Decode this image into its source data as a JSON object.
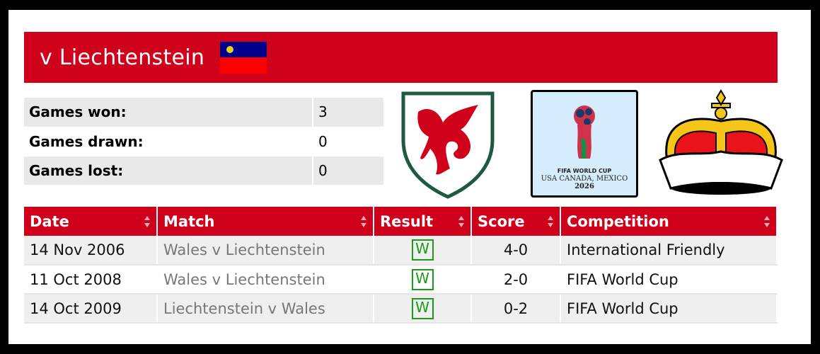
{
  "header": {
    "title": "v Liechtenstein",
    "flag_colors": {
      "top": "#00008b",
      "bottom": "#ff0000",
      "crown": "#e5d21a"
    }
  },
  "stats": [
    {
      "label": "Games won:",
      "value": "3"
    },
    {
      "label": "Games drawn:",
      "value": "0"
    },
    {
      "label": "Games lost:",
      "value": "0"
    }
  ],
  "logos": {
    "wales": "wales-crest",
    "worldcup": {
      "line1": "FIFA WORLD CUP",
      "line2": "USA CANADA, MEXICO",
      "line3": "2026"
    },
    "liechtenstein": "liechtenstein-crown"
  },
  "table": {
    "columns": [
      "Date",
      "Match",
      "Result",
      "Score",
      "Competition"
    ],
    "rows": [
      {
        "date": "14 Nov 2006",
        "match": "Wales v Liechtenstein",
        "result": "W",
        "score": "4-0",
        "competition": "International Friendly"
      },
      {
        "date": "11 Oct 2008",
        "match": "Wales v Liechtenstein",
        "result": "W",
        "score": "2-0",
        "competition": "FIFA World Cup"
      },
      {
        "date": "14 Oct 2009",
        "match": "Liechtenstein v Wales",
        "result": "W",
        "score": "0-2",
        "competition": "FIFA World Cup"
      }
    ]
  },
  "colors": {
    "accent": "#d0021b",
    "win": "#1a9c1a"
  }
}
